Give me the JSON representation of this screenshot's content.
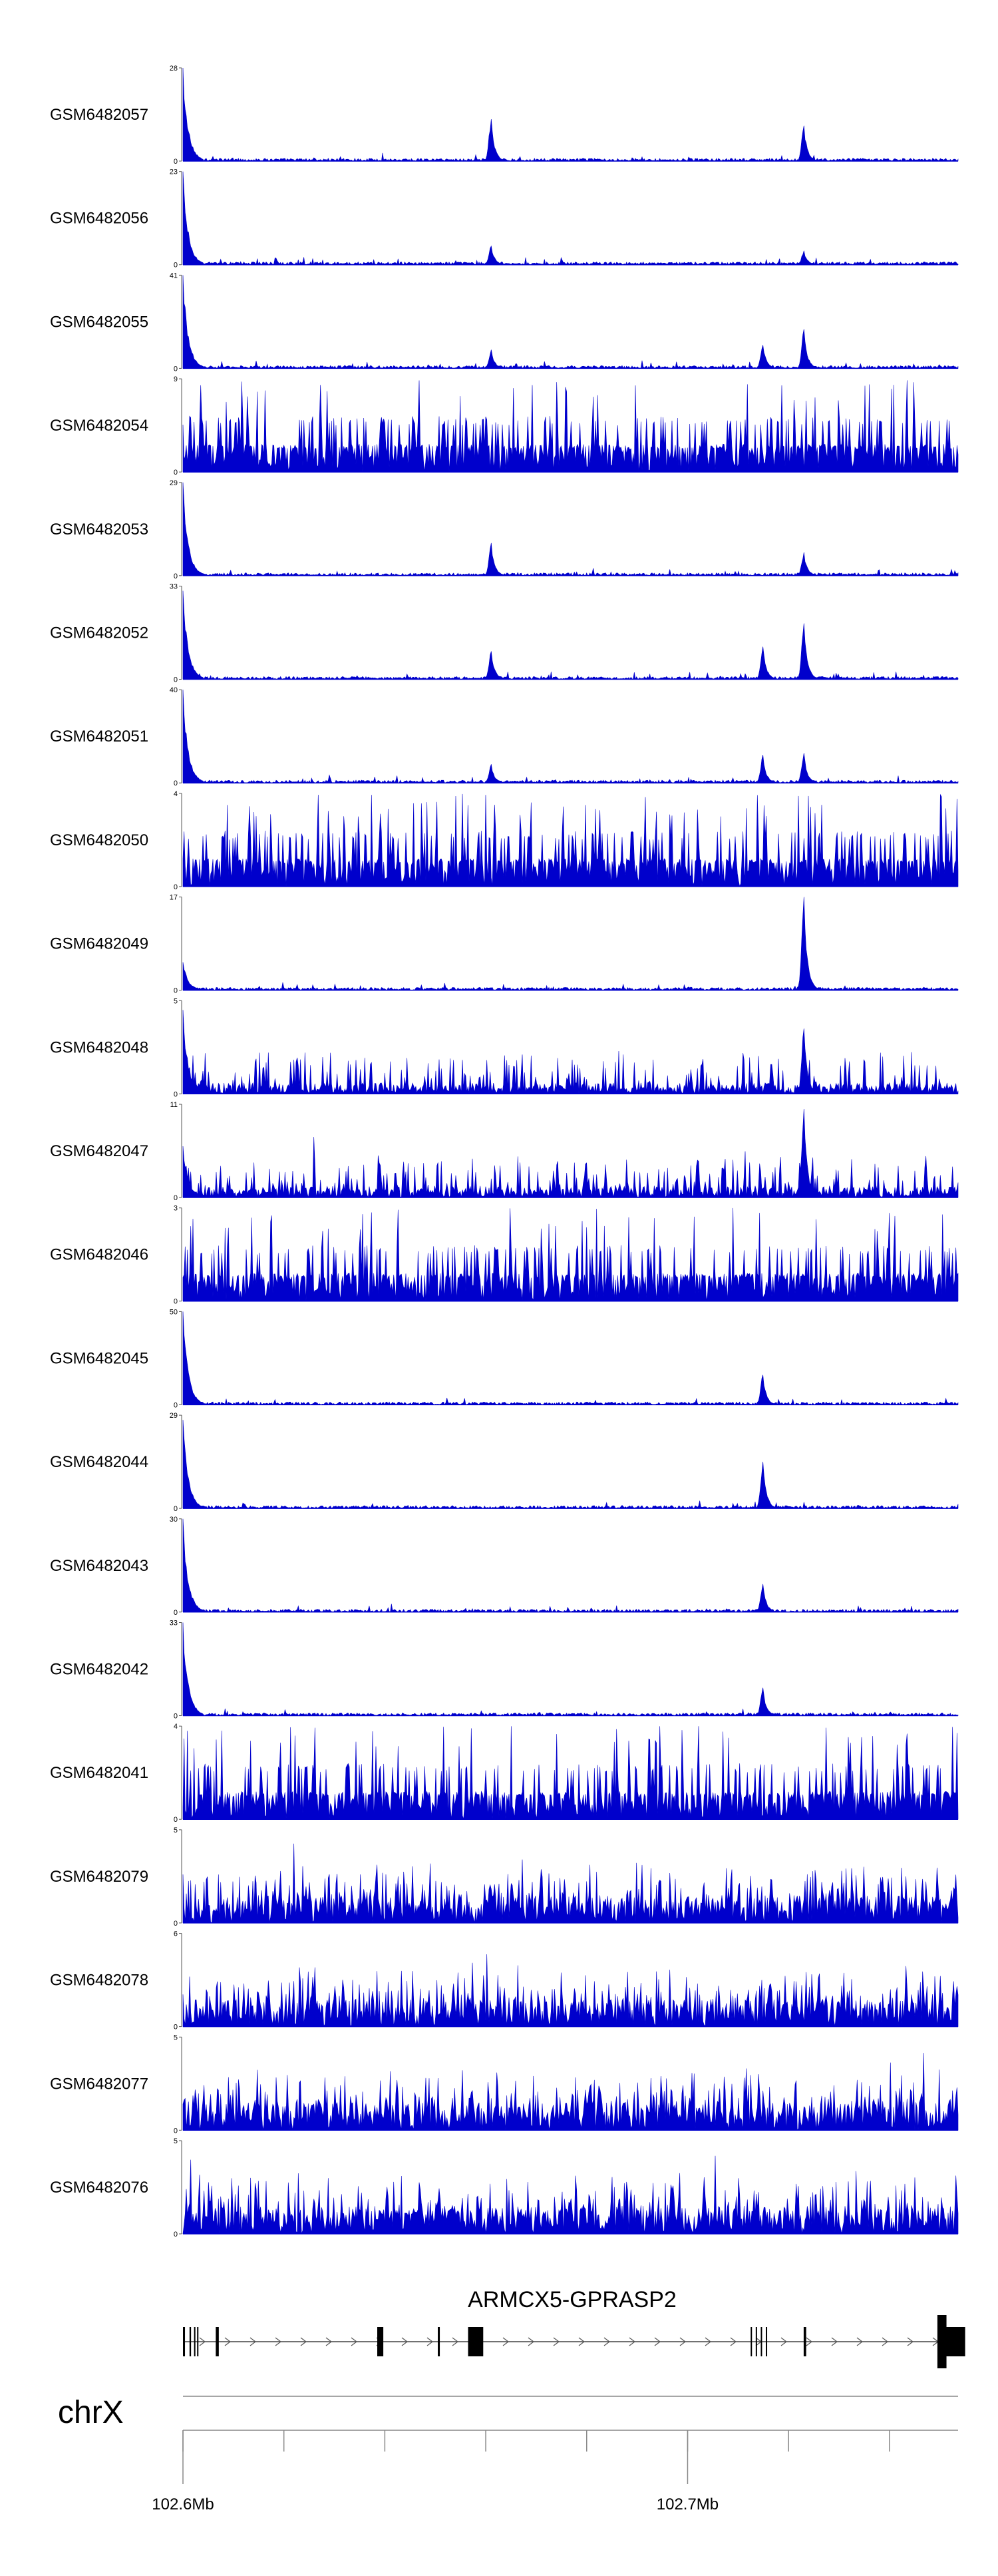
{
  "chart_data": {
    "type": "area",
    "title": "",
    "chromosome": "chrX",
    "xlabel": "",
    "ylabel": "",
    "xlim_mb": [
      102.6,
      102.7536
    ],
    "x_tick_labels": [
      "102.6Mb",
      "102.7Mb"
    ],
    "x_tick_values_mb": [
      102.6,
      102.7
    ],
    "gene": {
      "name": "ARMCX5-GPRASP2",
      "start_mb": 102.6,
      "end_mb": 102.753
    },
    "tracks": [
      {
        "name": "GSM6482057",
        "ymax": 28,
        "style": "sparse",
        "peaks": [
          [
            102.6,
            1.0
          ],
          [
            102.661,
            0.45
          ],
          [
            102.723,
            0.38
          ]
        ]
      },
      {
        "name": "GSM6482056",
        "ymax": 23,
        "style": "sparse",
        "peaks": [
          [
            102.6,
            1.0
          ],
          [
            102.661,
            0.2
          ],
          [
            102.723,
            0.15
          ]
        ]
      },
      {
        "name": "GSM6482055",
        "ymax": 41,
        "style": "sparse",
        "peaks": [
          [
            102.6,
            1.0
          ],
          [
            102.661,
            0.2
          ],
          [
            102.715,
            0.25
          ],
          [
            102.723,
            0.42
          ]
        ]
      },
      {
        "name": "GSM6482054",
        "ymax": 9,
        "style": "dense",
        "peaks": []
      },
      {
        "name": "GSM6482053",
        "ymax": 29,
        "style": "sparse",
        "peaks": [
          [
            102.6,
            1.0
          ],
          [
            102.661,
            0.35
          ],
          [
            102.723,
            0.25
          ]
        ]
      },
      {
        "name": "GSM6482052",
        "ymax": 33,
        "style": "sparse",
        "peaks": [
          [
            102.6,
            0.95
          ],
          [
            102.661,
            0.3
          ],
          [
            102.715,
            0.35
          ],
          [
            102.723,
            0.6
          ]
        ]
      },
      {
        "name": "GSM6482051",
        "ymax": 40,
        "style": "sparse",
        "peaks": [
          [
            102.6,
            1.0
          ],
          [
            102.661,
            0.2
          ],
          [
            102.715,
            0.3
          ],
          [
            102.723,
            0.32
          ]
        ]
      },
      {
        "name": "GSM6482050",
        "ymax": 4,
        "style": "dense",
        "peaks": []
      },
      {
        "name": "GSM6482049",
        "ymax": 17,
        "style": "sparse",
        "peaks": [
          [
            102.6,
            0.3
          ],
          [
            102.723,
            1.0
          ]
        ]
      },
      {
        "name": "GSM6482048",
        "ymax": 5,
        "style": "medium",
        "peaks": [
          [
            102.6,
            0.9
          ],
          [
            102.723,
            0.7
          ]
        ]
      },
      {
        "name": "GSM6482047",
        "ymax": 11,
        "style": "medium",
        "peaks": [
          [
            102.6,
            0.55
          ],
          [
            102.723,
            0.95
          ]
        ]
      },
      {
        "name": "GSM6482046",
        "ymax": 3,
        "style": "dense",
        "peaks": []
      },
      {
        "name": "GSM6482045",
        "ymax": 50,
        "style": "sparse",
        "peaks": [
          [
            102.6,
            1.0
          ],
          [
            102.715,
            0.32
          ]
        ]
      },
      {
        "name": "GSM6482044",
        "ymax": 29,
        "style": "sparse",
        "peaks": [
          [
            102.6,
            0.95
          ],
          [
            102.715,
            0.5
          ]
        ]
      },
      {
        "name": "GSM6482043",
        "ymax": 30,
        "style": "sparse",
        "peaks": [
          [
            102.6,
            1.0
          ],
          [
            102.715,
            0.3
          ]
        ]
      },
      {
        "name": "GSM6482042",
        "ymax": 33,
        "style": "sparse",
        "peaks": [
          [
            102.6,
            1.0
          ],
          [
            102.715,
            0.3
          ]
        ]
      },
      {
        "name": "GSM6482041",
        "ymax": 4,
        "style": "dense",
        "peaks": []
      },
      {
        "name": "GSM6482079",
        "ymax": 5,
        "style": "noisy",
        "peaks": []
      },
      {
        "name": "GSM6482078",
        "ymax": 6,
        "style": "noisy",
        "peaks": []
      },
      {
        "name": "GSM6482077",
        "ymax": 5,
        "style": "noisy",
        "peaks": []
      },
      {
        "name": "GSM6482076",
        "ymax": 5,
        "style": "noisy",
        "peaks": []
      }
    ],
    "y_min_label": "0",
    "color": "#0000cc"
  }
}
